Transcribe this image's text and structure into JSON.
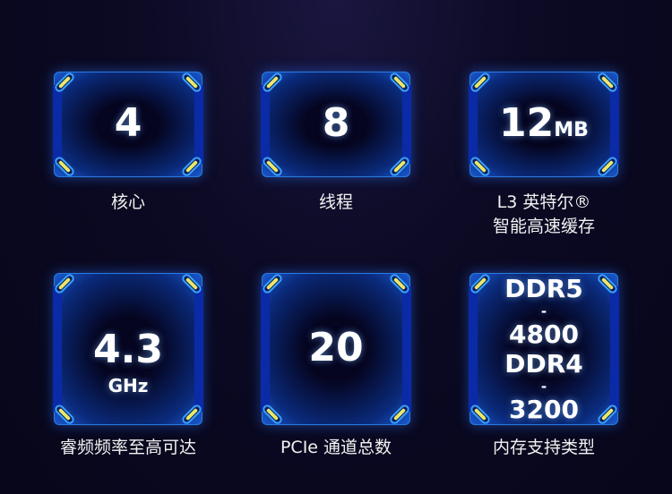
{
  "specs": [
    {
      "value": "4",
      "label": "核心"
    },
    {
      "value": "8",
      "label": "线程"
    },
    {
      "value": "12",
      "unit": "MB",
      "label_line1": "L3 英特尔®",
      "label_line2": "智能高速缓存"
    },
    {
      "value": "4.3",
      "unit": "GHz",
      "label": "睿频频率至高可达"
    },
    {
      "value": "20",
      "label": "PCIe 通道总数"
    },
    {
      "lines": [
        "DDR5",
        "-",
        "4800",
        "DDR4",
        "-",
        "3200"
      ],
      "label": "内存支持类型"
    }
  ]
}
